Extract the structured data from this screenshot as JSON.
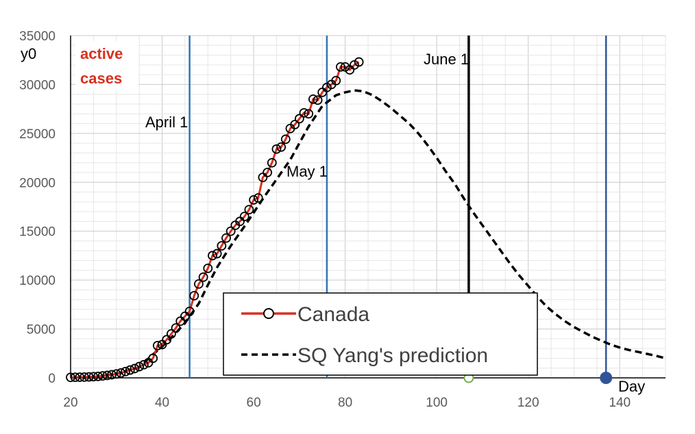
{
  "chart_data": {
    "type": "line",
    "xlabel": "Day",
    "ylabel": "y0",
    "xlim": [
      20,
      150
    ],
    "ylim": [
      0,
      35000
    ],
    "x_ticks": [
      20,
      40,
      60,
      80,
      100,
      120,
      140
    ],
    "y_ticks": [
      0,
      5000,
      10000,
      15000,
      20000,
      25000,
      30000,
      35000
    ],
    "grid": true,
    "legend_position": "bottom-center",
    "annotation_text": [
      "active",
      "cases"
    ],
    "series": [
      {
        "name": "Canada",
        "style": "solid-with-circle-markers",
        "color": "#d6311f",
        "x": [
          20,
          21,
          22,
          23,
          24,
          25,
          26,
          27,
          28,
          29,
          30,
          31,
          32,
          33,
          34,
          35,
          36,
          37,
          38,
          39,
          40,
          41,
          42,
          43,
          44,
          45,
          46,
          47,
          48,
          49,
          50,
          51,
          52,
          53,
          54,
          55,
          56,
          57,
          58,
          59,
          60,
          61,
          62,
          63,
          64,
          65,
          66,
          67,
          68,
          69,
          70,
          71,
          72,
          73,
          74,
          75,
          76,
          77,
          78,
          79,
          80,
          81,
          82,
          83
        ],
        "y": [
          50,
          60,
          70,
          80,
          100,
          120,
          150,
          200,
          250,
          320,
          400,
          500,
          650,
          800,
          950,
          1150,
          1350,
          1550,
          2000,
          3300,
          3400,
          3900,
          4500,
          5100,
          5800,
          6300,
          6800,
          8400,
          9600,
          10300,
          11200,
          12500,
          12700,
          13500,
          14300,
          15000,
          15600,
          16000,
          16500,
          17200,
          18200,
          18400,
          20500,
          21000,
          22000,
          23400,
          23600,
          24400,
          25500,
          25900,
          26500,
          27100,
          27000,
          28500,
          28400,
          29200,
          29700,
          30000,
          30400,
          31800,
          31800,
          31500,
          32000,
          32300
        ]
      },
      {
        "name": "SQ Yang's prediction",
        "style": "dashed",
        "color": "#000000",
        "x": [
          20,
          25,
          30,
          35,
          38,
          40,
          42,
          45,
          48,
          50,
          52,
          55,
          58,
          60,
          62,
          65,
          68,
          70,
          72,
          75,
          78,
          80,
          82,
          84,
          86,
          88,
          90,
          92,
          94,
          96,
          98,
          100,
          102,
          104,
          106,
          108,
          110,
          112,
          114,
          116,
          118,
          120,
          122,
          124,
          126,
          128,
          130,
          132,
          134,
          136,
          138,
          140,
          142,
          144,
          146,
          148,
          150
        ],
        "y": [
          30,
          80,
          400,
          1100,
          2400,
          3200,
          4100,
          5600,
          7600,
          9500,
          11300,
          13500,
          15500,
          16900,
          18300,
          20300,
          22300,
          24000,
          25700,
          27800,
          28900,
          29200,
          29400,
          29300,
          28900,
          28300,
          27600,
          26800,
          26000,
          25000,
          23800,
          22500,
          21100,
          19800,
          18300,
          16900,
          15600,
          14300,
          13000,
          11700,
          10500,
          9400,
          8300,
          7300,
          6500,
          5800,
          5200,
          4700,
          4200,
          3800,
          3400,
          3100,
          2850,
          2650,
          2450,
          2250,
          2000
        ]
      }
    ],
    "vertical_lines": [
      {
        "x": 46,
        "label": "April 1",
        "color": "#2e75b6"
      },
      {
        "x": 76,
        "label": "May 1",
        "color": "#2e75b6"
      },
      {
        "x": 107,
        "label": "June 1",
        "color": "#000000"
      },
      {
        "x": 137,
        "label": "",
        "color": "#2f5597"
      }
    ],
    "axis_markers": [
      {
        "x": 107,
        "y": 0,
        "style": "open-circle",
        "color": "#70ad47"
      },
      {
        "x": 137,
        "y": 0,
        "style": "filled-circle",
        "color": "#2f5597"
      }
    ]
  }
}
